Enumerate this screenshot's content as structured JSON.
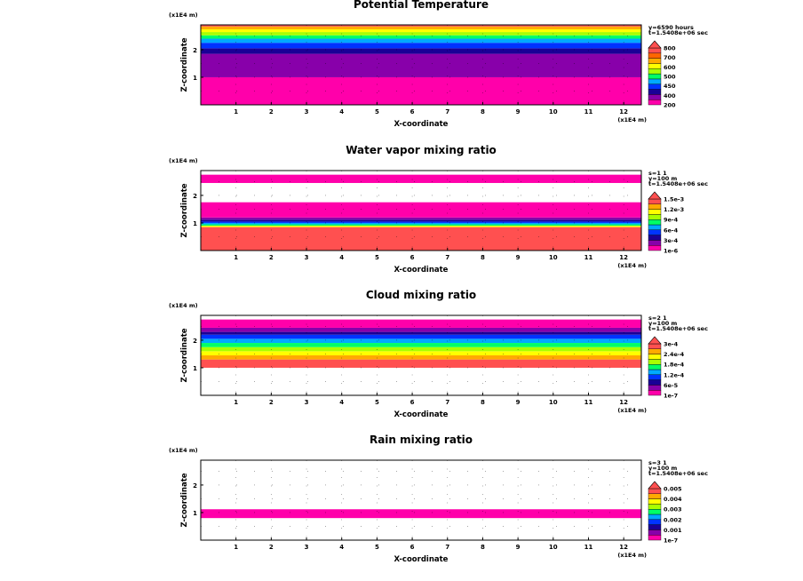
{
  "chart_data": [
    {
      "type": "heatmap",
      "title": "Potential Temperature",
      "xlabel": "X-coordinate",
      "ylabel": "Z-coordinate",
      "xunit": "(x1E4 m)",
      "yunit": "(x1E4 m)",
      "xlim": [
        0,
        12.5
      ],
      "ylim": [
        0,
        2.9
      ],
      "xticks": [
        "1",
        "2",
        "3",
        "4",
        "5",
        "6",
        "7",
        "8",
        "9",
        "10",
        "11",
        "12"
      ],
      "yticks": [
        "1",
        "2"
      ],
      "info_lines": [
        "y=6590 hours",
        "t=1.5408e+06 sec"
      ],
      "colorbar": {
        "labels": [
          "200",
          "400",
          "450",
          "500",
          "600",
          "700",
          "800"
        ],
        "colors": [
          "#ff00aa",
          "#8800aa",
          "#1a0096",
          "#0033ff",
          "#00aaff",
          "#00ff66",
          "#a8ff00",
          "#ffff00",
          "#ffaa00",
          "#ff6600",
          "#ff5050"
        ]
      },
      "bands": [
        {
          "from": 0.0,
          "to": 1.0,
          "color": "#ff00aa"
        },
        {
          "from": 1.0,
          "to": 1.85,
          "color": "#8800aa"
        },
        {
          "from": 1.85,
          "to": 2.05,
          "color": "#1a0096"
        },
        {
          "from": 2.05,
          "to": 2.25,
          "color": "#0033ff"
        },
        {
          "from": 2.25,
          "to": 2.4,
          "color": "#00aaff"
        },
        {
          "from": 2.4,
          "to": 2.52,
          "color": "#00ff66"
        },
        {
          "from": 2.52,
          "to": 2.64,
          "color": "#a8ff00"
        },
        {
          "from": 2.64,
          "to": 2.74,
          "color": "#ffff00"
        },
        {
          "from": 2.74,
          "to": 2.84,
          "color": "#ffaa00"
        },
        {
          "from": 2.84,
          "to": 2.9,
          "color": "#ff5050"
        }
      ]
    },
    {
      "type": "heatmap",
      "title": "Water vapor mixing ratio",
      "xlabel": "X-coordinate",
      "ylabel": "Z-coordinate",
      "xunit": "(x1E4 m)",
      "yunit": "(x1E4 m)",
      "xlim": [
        0,
        12.5
      ],
      "ylim": [
        0,
        2.9
      ],
      "xticks": [
        "1",
        "2",
        "3",
        "4",
        "5",
        "6",
        "7",
        "8",
        "9",
        "10",
        "11",
        "12"
      ],
      "yticks": [
        "1",
        "2"
      ],
      "info_lines": [
        "s=1 1",
        "y=100 m",
        "t=1.5408e+06 sec"
      ],
      "colorbar": {
        "labels": [
          "1e-6",
          "3e-4",
          "6e-4",
          "9e-4",
          "1.2e-3",
          "1.5e-3"
        ],
        "colors": [
          "#ff00aa",
          "#8800aa",
          "#1a0096",
          "#0033ff",
          "#00aaff",
          "#00ff66",
          "#a8ff00",
          "#ffff00",
          "#ffaa00",
          "#ff5050"
        ]
      },
      "bands": [
        {
          "from": 0.0,
          "to": 0.85,
          "color": "#ff5050"
        },
        {
          "from": 0.85,
          "to": 0.9,
          "color": "#ffff00"
        },
        {
          "from": 0.9,
          "to": 0.95,
          "color": "#00ff66"
        },
        {
          "from": 0.95,
          "to": 1.0,
          "color": "#00aaff"
        },
        {
          "from": 1.0,
          "to": 1.05,
          "color": "#0033ff"
        },
        {
          "from": 1.05,
          "to": 1.12,
          "color": "#1a0096"
        },
        {
          "from": 1.12,
          "to": 1.2,
          "color": "#8800aa"
        },
        {
          "from": 1.2,
          "to": 1.75,
          "color": "#ff00aa"
        },
        {
          "from": 2.45,
          "to": 2.75,
          "color": "#ff00aa"
        }
      ]
    },
    {
      "type": "heatmap",
      "title": "Cloud mixing ratio",
      "xlabel": "X-coordinate",
      "ylabel": "Z-coordinate",
      "xunit": "(x1E4 m)",
      "yunit": "(x1E4 m)",
      "xlim": [
        0,
        12.5
      ],
      "ylim": [
        0,
        2.9
      ],
      "xticks": [
        "1",
        "2",
        "3",
        "4",
        "5",
        "6",
        "7",
        "8",
        "9",
        "10",
        "11",
        "12"
      ],
      "yticks": [
        "1",
        "2"
      ],
      "info_lines": [
        "s=2 1",
        "y=100 m",
        "t=1.5408e+06 sec"
      ],
      "colorbar": {
        "labels": [
          "1e-7",
          "6e-5",
          "1.2e-4",
          "1.8e-4",
          "2.4e-4",
          "3e-4"
        ],
        "colors": [
          "#ff00aa",
          "#8800aa",
          "#1a0096",
          "#0033ff",
          "#00aaff",
          "#00ff66",
          "#a8ff00",
          "#ffff00",
          "#ffaa00",
          "#ff5050"
        ]
      },
      "bands": [
        {
          "from": 1.0,
          "to": 1.3,
          "color": "#ff5050"
        },
        {
          "from": 1.3,
          "to": 1.45,
          "color": "#ffaa00"
        },
        {
          "from": 1.45,
          "to": 1.6,
          "color": "#ffff00"
        },
        {
          "from": 1.6,
          "to": 1.75,
          "color": "#a8ff00"
        },
        {
          "from": 1.75,
          "to": 1.9,
          "color": "#00ff66"
        },
        {
          "from": 1.9,
          "to": 2.05,
          "color": "#00aaff"
        },
        {
          "from": 2.05,
          "to": 2.2,
          "color": "#0033ff"
        },
        {
          "from": 2.2,
          "to": 2.3,
          "color": "#1a0096"
        },
        {
          "from": 2.3,
          "to": 2.45,
          "color": "#8800aa"
        },
        {
          "from": 2.45,
          "to": 2.75,
          "color": "#ff00aa"
        }
      ]
    },
    {
      "type": "heatmap",
      "title": "Rain mixing ratio",
      "xlabel": "X-coordinate",
      "ylabel": "Z-coordinate",
      "xunit": "(x1E4 m)",
      "yunit": "(x1E4 m)",
      "xlim": [
        0,
        12.5
      ],
      "ylim": [
        0,
        2.9
      ],
      "xticks": [
        "1",
        "2",
        "3",
        "4",
        "5",
        "6",
        "7",
        "8",
        "9",
        "10",
        "11",
        "12"
      ],
      "yticks": [
        "1",
        "2"
      ],
      "info_lines": [
        "s=3 1",
        "y=100 m",
        "t=1.5408e+06 sec"
      ],
      "colorbar": {
        "labels": [
          "1e-7",
          "0.001",
          "0.002",
          "0.003",
          "0.004",
          "0.005"
        ],
        "colors": [
          "#ff00aa",
          "#8800aa",
          "#1a0096",
          "#0033ff",
          "#00aaff",
          "#00ff66",
          "#a8ff00",
          "#ffff00",
          "#ffaa00",
          "#ff5050"
        ]
      },
      "bands": [
        {
          "from": 0.8,
          "to": 1.12,
          "color": "#ff00aa"
        }
      ]
    }
  ]
}
